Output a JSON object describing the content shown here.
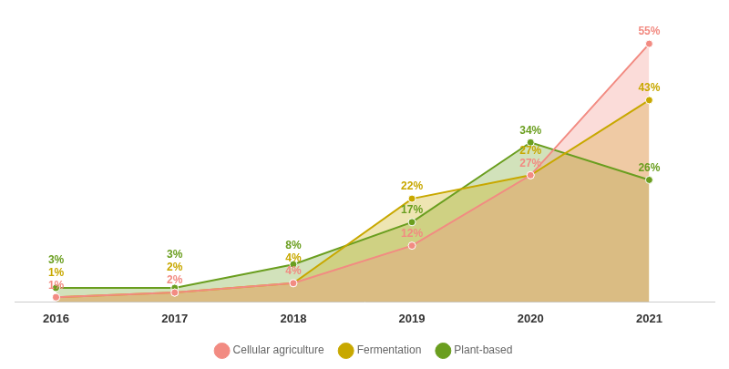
{
  "chart_data": {
    "type": "area",
    "x": [
      2016,
      2017,
      2018,
      2019,
      2020,
      2021
    ],
    "xlim": [
      2015.65,
      2021.55
    ],
    "xticks": [
      2016,
      2017,
      2018,
      2019,
      2020,
      2021
    ],
    "ylim": [
      0,
      62
    ],
    "series": [
      {
        "name": "Cellular agriculture",
        "color": "#f28b82",
        "values": [
          1,
          2,
          4,
          12,
          27,
          55
        ],
        "value_labels": [
          "1%",
          "2%",
          "4%",
          "12%",
          "27%",
          "55%"
        ]
      },
      {
        "name": "Fermentation",
        "color": "#c8a800",
        "values": [
          1,
          2,
          4,
          22,
          27,
          43
        ],
        "value_labels": [
          "1%",
          "2%",
          "4%",
          "22%",
          "27%",
          "43%"
        ]
      },
      {
        "name": "Plant-based",
        "color": "#6a9e1f",
        "values": [
          3,
          3,
          8,
          17,
          34,
          26
        ],
        "value_labels": [
          "3%",
          "3%",
          "8%",
          "17%",
          "34%",
          "26%"
        ]
      }
    ],
    "stacked": false,
    "data_labels": true,
    "grid": false,
    "legend": "bottom",
    "tick_labels": "x",
    "marker": "circle"
  }
}
